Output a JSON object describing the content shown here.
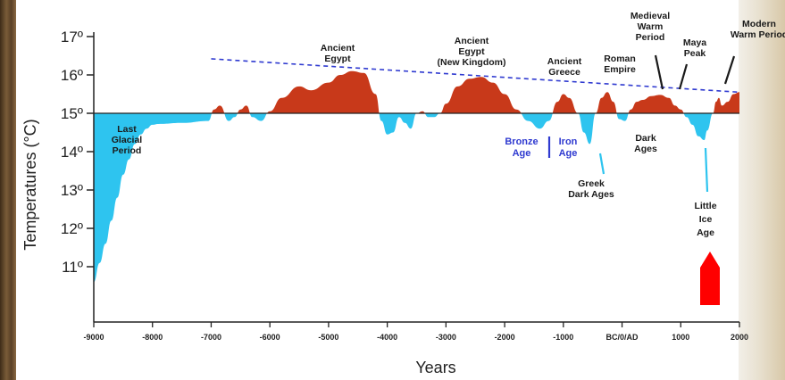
{
  "chart_data": {
    "type": "area",
    "title": "",
    "xlabel": "Years",
    "ylabel": "Temperatures (°C)",
    "xlim": [
      -9000,
      2000
    ],
    "ylim": [
      10,
      17.3
    ],
    "baseline": 15,
    "x_ticks": [
      {
        "value": -9000,
        "label": "-9000"
      },
      {
        "value": -8000,
        "label": "-8000"
      },
      {
        "value": -7000,
        "label": "-7000"
      },
      {
        "value": -6000,
        "label": "-6000"
      },
      {
        "value": -5000,
        "label": "-5000"
      },
      {
        "value": -4000,
        "label": "-4000"
      },
      {
        "value": -3000,
        "label": "-3000"
      },
      {
        "value": -2000,
        "label": "-2000"
      },
      {
        "value": -1000,
        "label": "-1000"
      },
      {
        "value": 0,
        "label": "BC/0/AD"
      },
      {
        "value": 1000,
        "label": "1000"
      },
      {
        "value": 2000,
        "label": "2000"
      }
    ],
    "y_ticks": [
      {
        "value": 11,
        "label": "11º"
      },
      {
        "value": 12,
        "label": "12º"
      },
      {
        "value": 13,
        "label": "13º"
      },
      {
        "value": 14,
        "label": "14º"
      },
      {
        "value": 15,
        "label": "15º"
      },
      {
        "value": 16,
        "label": "16º"
      },
      {
        "value": 17,
        "label": "17º"
      }
    ],
    "series": [
      {
        "x": [
          -9000,
          -8900,
          -8800,
          -8700,
          -8600,
          -8500,
          -8400,
          -8300,
          -8200,
          -8100,
          -8000,
          -7900,
          -7500,
          -7050,
          -6950,
          -6850,
          -6700,
          -6600,
          -6500,
          -6400,
          -6300,
          -6150,
          -6000,
          -5800,
          -5500,
          -5300,
          -5000,
          -4800,
          -4600,
          -4400,
          -4200,
          -4100,
          -4000,
          -3900,
          -3800,
          -3700,
          -3600,
          -3500,
          -3400,
          -3300,
          -3200,
          -3100,
          -3000,
          -2800,
          -2600,
          -2400,
          -2200,
          -2000,
          -1800,
          -1600,
          -1400,
          -1250,
          -1100,
          -1000,
          -900,
          -750,
          -650,
          -550,
          -450,
          -350,
          -250,
          -150,
          -50,
          50,
          150,
          250,
          350,
          500,
          650,
          800,
          900,
          1000,
          1100,
          1200,
          1300,
          1400,
          1450,
          1550,
          1600,
          1650,
          1700,
          1800,
          1900,
          2000
        ],
        "y": [
          10.6,
          11.1,
          11.6,
          12.2,
          12.8,
          13.4,
          13.8,
          14.2,
          14.45,
          14.6,
          14.7,
          14.72,
          14.75,
          14.8,
          15.1,
          15.2,
          14.8,
          14.9,
          15.1,
          15.2,
          14.9,
          14.8,
          15.05,
          15.4,
          15.7,
          15.6,
          15.8,
          16.0,
          16.1,
          16.05,
          15.5,
          14.8,
          14.45,
          14.5,
          14.9,
          14.75,
          14.6,
          15.0,
          15.05,
          14.9,
          14.9,
          15.0,
          15.25,
          15.7,
          15.9,
          15.95,
          15.8,
          15.5,
          15.1,
          14.8,
          14.6,
          14.8,
          15.3,
          15.5,
          15.4,
          15.0,
          14.5,
          14.2,
          15.0,
          15.4,
          15.55,
          15.3,
          14.85,
          14.8,
          15.1,
          15.3,
          15.35,
          15.45,
          15.48,
          15.4,
          15.2,
          15.1,
          14.9,
          14.7,
          14.4,
          14.3,
          14.55,
          15.0,
          15.3,
          15.4,
          15.2,
          15.3,
          15.5,
          15.55
        ]
      }
    ],
    "trendline": {
      "x": [
        -7000,
        2000
      ],
      "y": [
        16.42,
        15.55
      ]
    },
    "colors": {
      "warm": "#c8391a",
      "cold": "#2ec4ef",
      "trend": "#2f3ad0",
      "axis": "#222222",
      "marker": "#ff0000"
    },
    "annotations": [
      {
        "label_lines": [
          "Last",
          "Glacial",
          "Period"
        ],
        "color": "dark"
      },
      {
        "label_lines": [
          "Ancient",
          "Egypt"
        ],
        "color": "dark"
      },
      {
        "label_lines": [
          "Ancient",
          "Egypt",
          "(New Kingdom)"
        ],
        "color": "dark"
      },
      {
        "label_lines": [
          "Ancient",
          "Greece"
        ],
        "color": "dark"
      },
      {
        "label_lines": [
          "Roman",
          "Empire"
        ],
        "color": "dark"
      },
      {
        "label_lines": [
          "Medieval",
          "Warm",
          "Period"
        ],
        "color": "dark"
      },
      {
        "label_lines": [
          "Maya",
          "Peak"
        ],
        "color": "dark"
      },
      {
        "label_lines": [
          "Modern",
          "Warm Period"
        ],
        "color": "dark"
      },
      {
        "label_lines": [
          "Bronze",
          "Age"
        ],
        "color": "blue"
      },
      {
        "label_lines": [
          "Iron",
          "Age"
        ],
        "color": "blue"
      },
      {
        "label_lines": [
          "Greek",
          "Dark Ages"
        ],
        "color": "dark"
      },
      {
        "label_lines": [
          "Dark",
          "Ages"
        ],
        "color": "dark"
      },
      {
        "label_lines": [
          "Little",
          "Ice",
          "Age"
        ],
        "color": "dark"
      }
    ],
    "marker": {
      "x": 1500,
      "shape": "upward-arrow",
      "color": "#ff0000"
    },
    "grid": false,
    "legend": "none"
  }
}
